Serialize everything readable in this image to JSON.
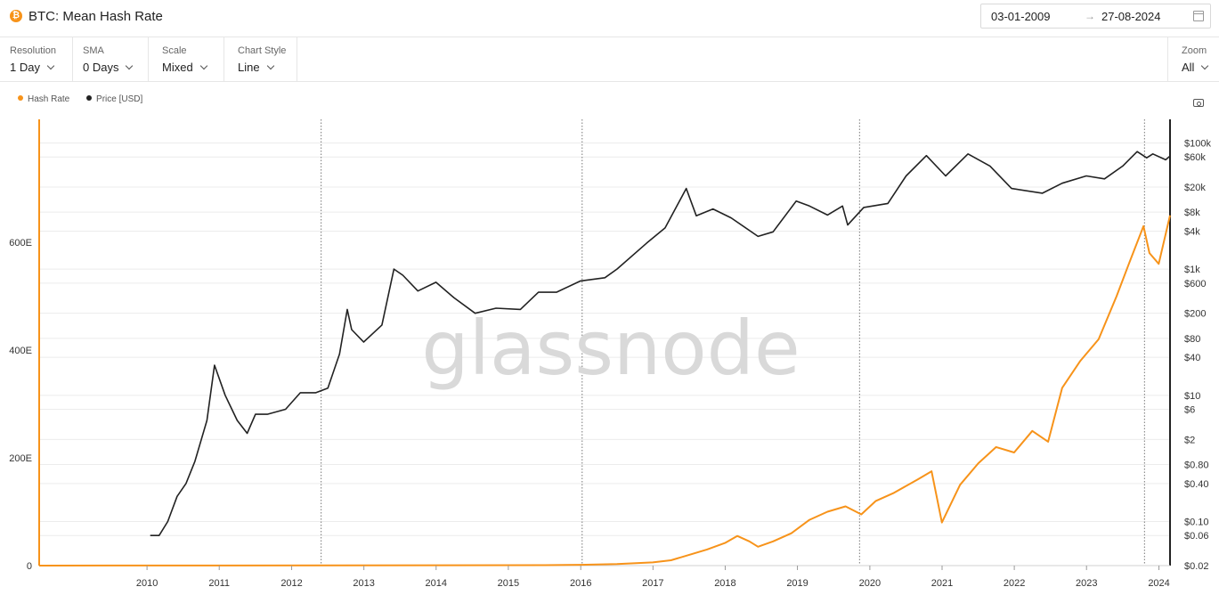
{
  "header": {
    "coin_symbol": "₿",
    "title": "BTC: Mean Hash Rate",
    "date_start": "03-01-2009",
    "date_arrow": "→",
    "date_end": "27-08-2024"
  },
  "toolbar": {
    "resolution": {
      "label": "Resolution",
      "value": "1 Day"
    },
    "sma": {
      "label": "SMA",
      "value": "0 Days"
    },
    "scale": {
      "label": "Scale",
      "value": "Mixed"
    },
    "chart_style": {
      "label": "Chart Style",
      "value": "Line"
    },
    "zoom": {
      "label": "Zoom",
      "value": "All"
    }
  },
  "legend": [
    {
      "name": "Hash Rate",
      "color": "#f7931a"
    },
    {
      "name": "Price [USD]",
      "color": "#222222"
    }
  ],
  "watermark": "glassnode",
  "chart_data": {
    "type": "line",
    "title": "BTC: Mean Hash Rate",
    "x_ticks": [
      "2010",
      "2011",
      "2012",
      "2013",
      "2014",
      "2015",
      "2016",
      "2017",
      "2018",
      "2019",
      "2020",
      "2021",
      "2022",
      "2023",
      "2024"
    ],
    "xlim": [
      "2009-01-03",
      "2024-08-27"
    ],
    "y_left": {
      "label": "Hash Rate",
      "ticks": [
        "0",
        "200E",
        "400E",
        "600E"
      ],
      "ylim": [
        0,
        805
      ],
      "scale": "linear"
    },
    "y_right": {
      "label": "Price [USD]",
      "ticks": [
        "$0.02",
        "$0.06",
        "$0.10",
        "$0.40",
        "$0.80",
        "$2",
        "$6",
        "$10",
        "$40",
        "$80",
        "$200",
        "$600",
        "$1k",
        "$4k",
        "$8k",
        "$20k",
        "$60k",
        "$100k"
      ],
      "ylim": [
        0.02,
        150000
      ],
      "scale": "log"
    },
    "vertical_markers": [
      "2012-11-28",
      "2016-07-09",
      "2020-05-11",
      "2024-04-20"
    ],
    "grid": true,
    "legend_position": "top-left",
    "series": [
      {
        "name": "Hash Rate",
        "axis": "left",
        "color": "#f7931a",
        "points": [
          [
            "2009-01-03",
            0
          ],
          [
            "2016-01-01",
            0.8
          ],
          [
            "2016-07-01",
            1.5
          ],
          [
            "2017-01-01",
            3
          ],
          [
            "2017-07-01",
            6
          ],
          [
            "2017-10-01",
            10
          ],
          [
            "2018-01-01",
            20
          ],
          [
            "2018-04-01",
            30
          ],
          [
            "2018-07-01",
            42
          ],
          [
            "2018-09-01",
            55
          ],
          [
            "2018-11-01",
            45
          ],
          [
            "2018-12-15",
            35
          ],
          [
            "2019-03-01",
            45
          ],
          [
            "2019-06-01",
            60
          ],
          [
            "2019-09-01",
            85
          ],
          [
            "2019-12-01",
            100
          ],
          [
            "2020-03-01",
            110
          ],
          [
            "2020-05-20",
            95
          ],
          [
            "2020-08-01",
            120
          ],
          [
            "2020-11-01",
            135
          ],
          [
            "2021-03-01",
            160
          ],
          [
            "2021-05-10",
            175
          ],
          [
            "2021-07-01",
            80
          ],
          [
            "2021-10-01",
            150
          ],
          [
            "2022-01-01",
            190
          ],
          [
            "2022-04-01",
            220
          ],
          [
            "2022-07-01",
            210
          ],
          [
            "2022-10-01",
            250
          ],
          [
            "2022-12-20",
            230
          ],
          [
            "2023-03-01",
            330
          ],
          [
            "2023-06-01",
            380
          ],
          [
            "2023-09-01",
            420
          ],
          [
            "2023-12-01",
            500
          ],
          [
            "2024-02-01",
            560
          ],
          [
            "2024-04-15",
            630
          ],
          [
            "2024-05-15",
            580
          ],
          [
            "2024-07-01",
            560
          ],
          [
            "2024-08-27",
            650
          ]
        ]
      },
      {
        "name": "Price [USD]",
        "axis": "right",
        "color": "#222222",
        "points": [
          [
            "2010-07-18",
            0.06
          ],
          [
            "2010-09-01",
            0.06
          ],
          [
            "2010-10-15",
            0.1
          ],
          [
            "2010-12-01",
            0.25
          ],
          [
            "2011-01-15",
            0.4
          ],
          [
            "2011-03-01",
            0.9
          ],
          [
            "2011-05-01",
            4
          ],
          [
            "2011-06-08",
            30
          ],
          [
            "2011-08-01",
            10
          ],
          [
            "2011-10-01",
            4
          ],
          [
            "2011-11-20",
            2.5
          ],
          [
            "2012-01-01",
            5
          ],
          [
            "2012-03-01",
            5
          ],
          [
            "2012-06-01",
            6
          ],
          [
            "2012-08-15",
            11
          ],
          [
            "2012-11-01",
            11
          ],
          [
            "2013-01-01",
            13
          ],
          [
            "2013-03-01",
            45
          ],
          [
            "2013-04-09",
            230
          ],
          [
            "2013-05-01",
            110
          ],
          [
            "2013-07-01",
            70
          ],
          [
            "2013-10-01",
            130
          ],
          [
            "2013-12-01",
            1000
          ],
          [
            "2014-01-15",
            800
          ],
          [
            "2014-04-01",
            450
          ],
          [
            "2014-07-01",
            620
          ],
          [
            "2014-10-01",
            350
          ],
          [
            "2015-01-15",
            200
          ],
          [
            "2015-05-01",
            240
          ],
          [
            "2015-09-01",
            230
          ],
          [
            "2015-12-01",
            430
          ],
          [
            "2016-03-01",
            430
          ],
          [
            "2016-07-01",
            650
          ],
          [
            "2016-11-01",
            730
          ],
          [
            "2017-01-01",
            1000
          ],
          [
            "2017-06-01",
            2600
          ],
          [
            "2017-09-01",
            4500
          ],
          [
            "2017-12-17",
            19000
          ],
          [
            "2018-02-06",
            7000
          ],
          [
            "2018-05-01",
            9000
          ],
          [
            "2018-08-01",
            6500
          ],
          [
            "2018-12-15",
            3300
          ],
          [
            "2019-03-01",
            3900
          ],
          [
            "2019-06-26",
            12000
          ],
          [
            "2019-09-01",
            10000
          ],
          [
            "2019-12-01",
            7200
          ],
          [
            "2020-02-15",
            10000
          ],
          [
            "2020-03-12",
            5000
          ],
          [
            "2020-06-01",
            9500
          ],
          [
            "2020-10-01",
            11000
          ],
          [
            "2021-01-01",
            30000
          ],
          [
            "2021-04-14",
            63000
          ],
          [
            "2021-07-20",
            30000
          ],
          [
            "2021-11-10",
            67000
          ],
          [
            "2022-03-01",
            43000
          ],
          [
            "2022-06-18",
            19000
          ],
          [
            "2022-11-21",
            16000
          ],
          [
            "2023-03-01",
            23000
          ],
          [
            "2023-07-01",
            30000
          ],
          [
            "2023-10-01",
            27000
          ],
          [
            "2024-01-01",
            43000
          ],
          [
            "2024-03-14",
            73000
          ],
          [
            "2024-05-01",
            58000
          ],
          [
            "2024-06-01",
            67000
          ],
          [
            "2024-08-05",
            54000
          ],
          [
            "2024-08-27",
            62000
          ]
        ]
      }
    ]
  }
}
